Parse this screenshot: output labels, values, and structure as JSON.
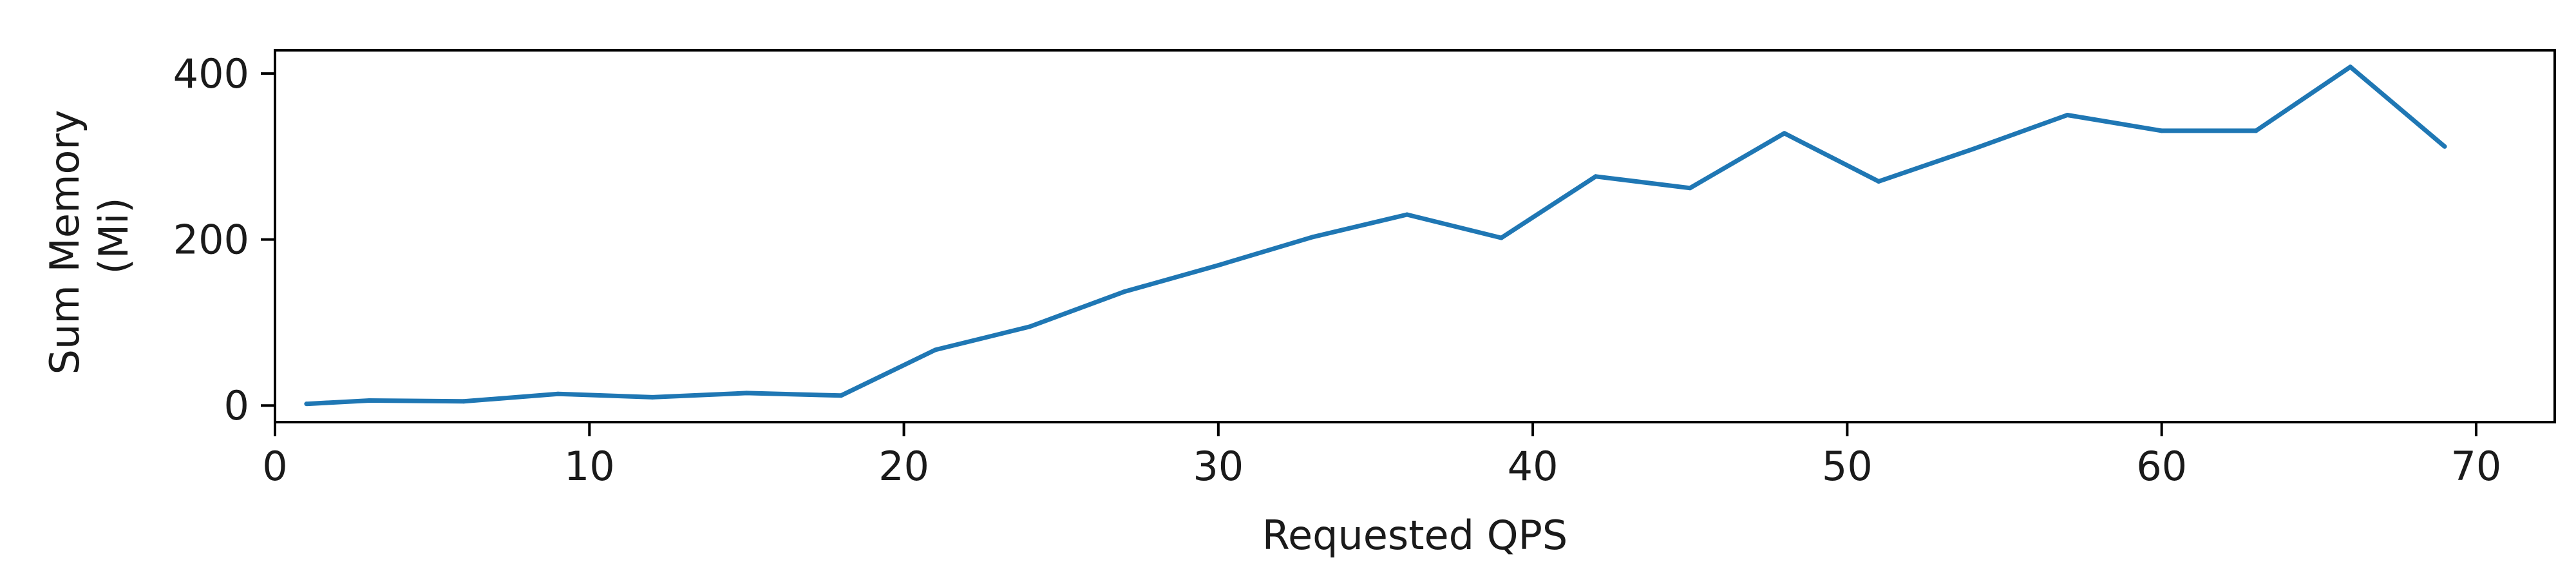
{
  "chart_data": {
    "type": "line",
    "title": "",
    "xlabel": "Requested QPS",
    "ylabel_lines": [
      "Sum Memory",
      "(Mi)"
    ],
    "xlim": [
      0,
      72.5
    ],
    "ylim": [
      -20,
      428
    ],
    "x_ticks": [
      0,
      10,
      20,
      30,
      40,
      50,
      60,
      70
    ],
    "y_ticks": [
      0,
      200,
      400
    ],
    "x_tick_labels": [
      "0",
      "10",
      "20",
      "30",
      "40",
      "50",
      "60",
      "70"
    ],
    "y_tick_labels": [
      "0",
      "200",
      "400"
    ],
    "grid": false,
    "series": [
      {
        "color": "#1f77b4",
        "x": [
          1,
          3,
          6,
          9,
          12,
          15,
          18,
          21,
          24,
          27,
          30,
          33,
          36,
          39,
          42,
          45,
          48,
          51,
          54,
          57,
          60,
          63,
          66,
          69
        ],
        "y": [
          2,
          6,
          5,
          14,
          10,
          15,
          12,
          67,
          95,
          137,
          169,
          203,
          230,
          202,
          276,
          262,
          328,
          270,
          309,
          350,
          331,
          331,
          408,
          312
        ]
      }
    ]
  }
}
